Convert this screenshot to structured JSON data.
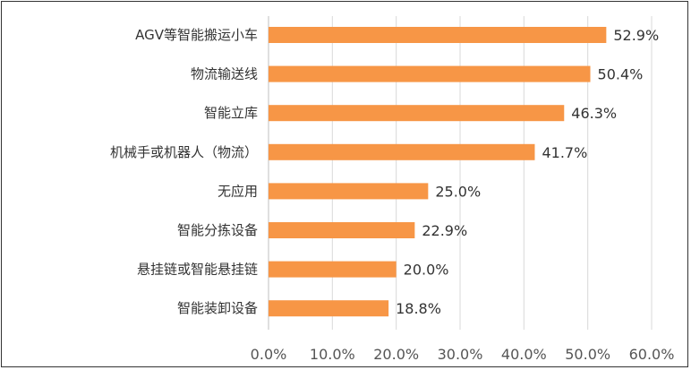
{
  "chart_data": {
    "type": "bar",
    "orientation": "horizontal",
    "categories": [
      "AGV等智能搬运小车",
      "物流输送线",
      "智能立库",
      "机械手或机器人（物流）",
      "无应用",
      "智能分拣设备",
      "悬挂链或智能悬挂链",
      "智能装卸设备"
    ],
    "values": [
      52.9,
      50.4,
      46.3,
      41.7,
      25.0,
      22.9,
      20.0,
      18.8
    ],
    "value_labels": [
      "52.9%",
      "50.4%",
      "46.3%",
      "41.7%",
      "25.0%",
      "22.9%",
      "20.0%",
      "18.8%"
    ],
    "xlim": [
      0,
      60
    ],
    "x_ticks": [
      0,
      10,
      20,
      30,
      40,
      50,
      60
    ],
    "x_tick_labels": [
      "0.0%",
      "10.0%",
      "20.0%",
      "30.0%",
      "40.0%",
      "50.0%",
      "60.0%"
    ],
    "bar_color": "#f79646",
    "grid": true,
    "legend": false
  }
}
